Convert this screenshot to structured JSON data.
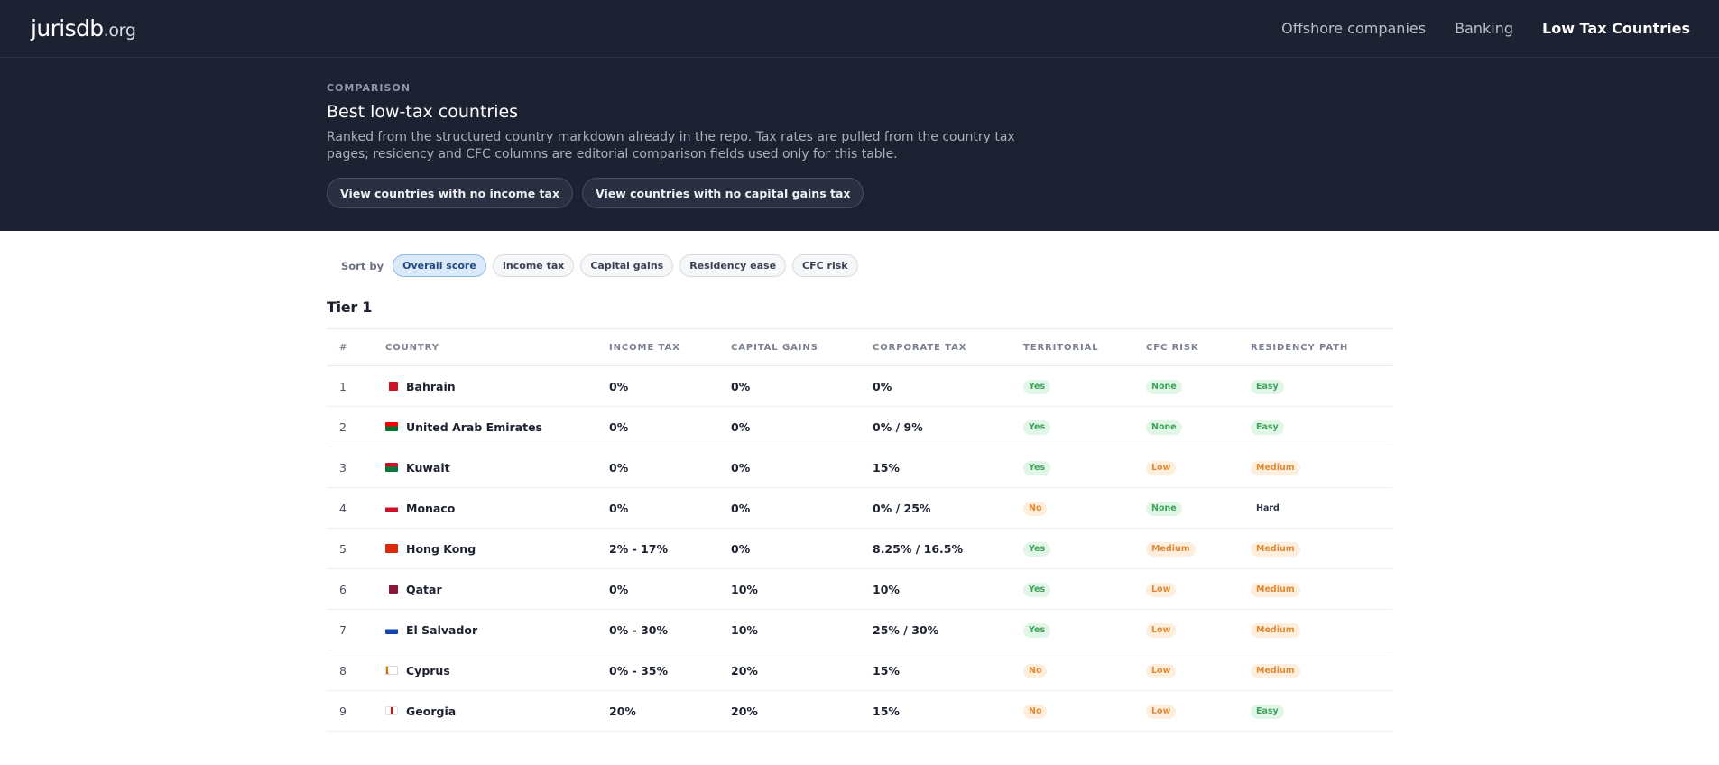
{
  "header": {
    "logo_main": "jurisdb",
    "logo_tld": ".org",
    "nav": [
      {
        "label": "Offshore companies",
        "active": false
      },
      {
        "label": "Banking",
        "active": false
      },
      {
        "label": "Low Tax Countries",
        "active": true
      }
    ]
  },
  "hero": {
    "eyebrow": "COMPARISON",
    "title": "Best low-tax countries",
    "description": "Ranked from the structured country markdown already in the repo. Tax rates are pulled from the country tax pages; residency and CFC columns are editorial comparison fields used only for this table.",
    "buttons": [
      "View countries with no income tax",
      "View countries with no capital gains tax"
    ]
  },
  "sort": {
    "label": "Sort by",
    "options": [
      "Overall score",
      "Income tax",
      "Capital gains",
      "Residency ease",
      "CFC risk"
    ],
    "active": "Overall score"
  },
  "tier": {
    "title": "Tier 1"
  },
  "table": {
    "headers": [
      "#",
      "COUNTRY",
      "INCOME TAX",
      "CAPITAL GAINS",
      "CORPORATE TAX",
      "TERRITORIAL",
      "CFC RISK",
      "RESIDENCY PATH"
    ],
    "rows": [
      {
        "rank": "1",
        "country": "Bahrain",
        "flag": [
          "#ce1126",
          "#ffffff"
        ],
        "income": "0%",
        "cg": "0%",
        "corp": "0%",
        "territorial": "Yes",
        "cfc": "None",
        "residency": "Easy"
      },
      {
        "rank": "2",
        "country": "United Arab Emirates",
        "flag": [
          "#00732f",
          "#ff0000"
        ],
        "income": "0%",
        "cg": "0%",
        "corp": "0% / 9%",
        "territorial": "Yes",
        "cfc": "None",
        "residency": "Easy"
      },
      {
        "rank": "3",
        "country": "Kuwait",
        "flag": [
          "#007a3d",
          "#ce1126"
        ],
        "income": "0%",
        "cg": "0%",
        "corp": "15%",
        "territorial": "Yes",
        "cfc": "Low",
        "residency": "Medium"
      },
      {
        "rank": "4",
        "country": "Monaco",
        "flag": [
          "#ce1126",
          "#ffffff"
        ],
        "income": "0%",
        "cg": "0%",
        "corp": "0% / 25%",
        "territorial": "No",
        "cfc": "None",
        "residency": "Hard"
      },
      {
        "rank": "5",
        "country": "Hong Kong",
        "flag": [
          "#de2910",
          "#de2910"
        ],
        "income": "2% - 17%",
        "cg": "0%",
        "corp": "8.25% / 16.5%",
        "territorial": "Yes",
        "cfc": "Medium",
        "residency": "Medium"
      },
      {
        "rank": "6",
        "country": "Qatar",
        "flag": [
          "#8a1538",
          "#ffffff"
        ],
        "income": "0%",
        "cg": "10%",
        "corp": "10%",
        "territorial": "Yes",
        "cfc": "Low",
        "residency": "Medium"
      },
      {
        "rank": "7",
        "country": "El Salvador",
        "flag": [
          "#0f47af",
          "#ffffff"
        ],
        "income": "0% - 30%",
        "cg": "10%",
        "corp": "25% / 30%",
        "territorial": "Yes",
        "cfc": "Low",
        "residency": "Medium"
      },
      {
        "rank": "8",
        "country": "Cyprus",
        "flag": [
          "#ffffff",
          "#d57800"
        ],
        "income": "0% - 35%",
        "cg": "20%",
        "corp": "15%",
        "territorial": "No",
        "cfc": "Low",
        "residency": "Medium"
      },
      {
        "rank": "9",
        "country": "Georgia",
        "flag": [
          "#ffffff",
          "#ff0000"
        ],
        "income": "20%",
        "cg": "20%",
        "corp": "15%",
        "territorial": "No",
        "cfc": "Low",
        "residency": "Easy"
      }
    ]
  },
  "badge_colors": {
    "Yes": "green",
    "No": "orange",
    "None": "green",
    "Low": "orange",
    "Medium": "orange",
    "Easy": "green",
    "Hard": "gray"
  }
}
